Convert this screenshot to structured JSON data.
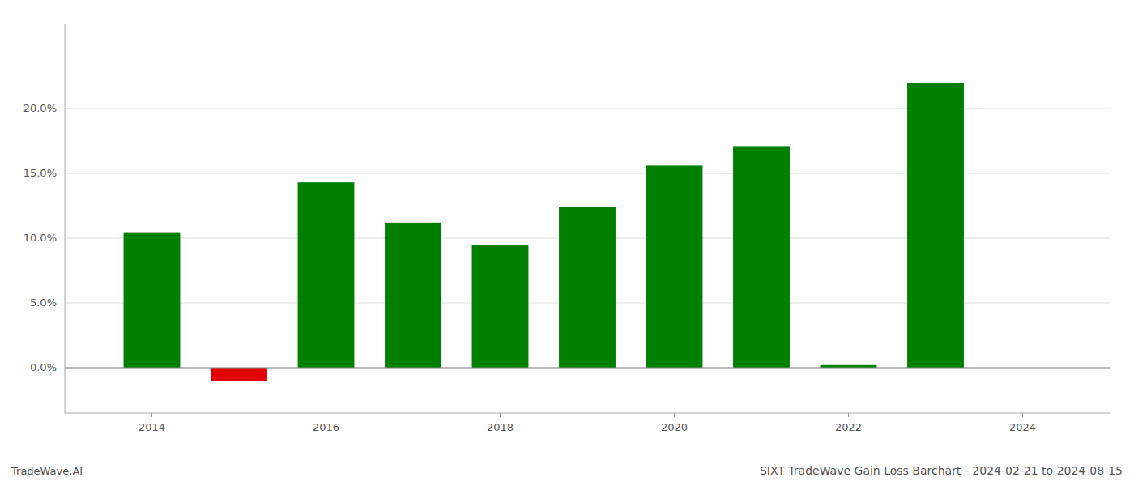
{
  "chart_data": {
    "type": "bar",
    "title": "SIXT TradeWave Gain Loss Barchart - 2024-02-21 to 2024-08-15",
    "annotations": [
      "TradeWave.AI"
    ],
    "x": [
      2014,
      2015,
      2016,
      2017,
      2018,
      2019,
      2020,
      2021,
      2022,
      2023
    ],
    "values": [
      0.104,
      -0.01,
      0.143,
      0.112,
      0.095,
      0.124,
      0.156,
      0.171,
      0.002,
      0.22
    ],
    "colors": [
      "#008000",
      "#e00000",
      "#008000",
      "#008000",
      "#008000",
      "#008000",
      "#008000",
      "#008000",
      "#008000",
      "#008000"
    ],
    "xlim": [
      2013.0,
      2025.0
    ],
    "xticks": [
      2014,
      2016,
      2018,
      2020,
      2022,
      2024
    ],
    "ylim": [
      -0.035,
      0.265
    ],
    "yticks": [
      {
        "value": 0.0,
        "label": "0.0%"
      },
      {
        "value": 0.05,
        "label": "5.0%"
      },
      {
        "value": 0.1,
        "label": "10.0%"
      },
      {
        "value": 0.15,
        "label": "15.0%"
      },
      {
        "value": 0.2,
        "label": "20.0%"
      }
    ],
    "grid": true
  }
}
